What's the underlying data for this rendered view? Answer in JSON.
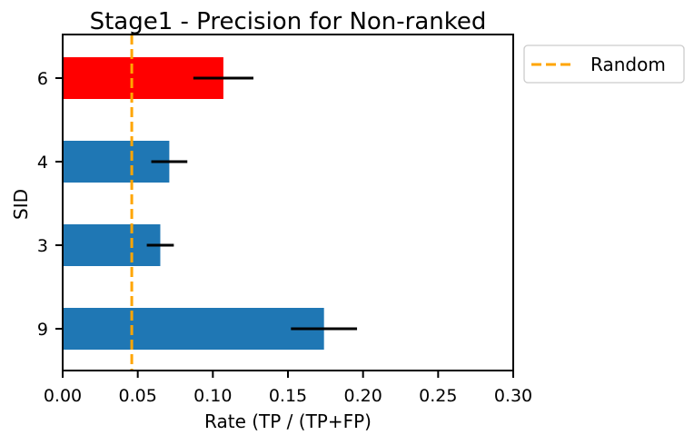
{
  "chart_data": {
    "type": "bar",
    "orientation": "horizontal",
    "title": "Stage1 - Precision for Non-ranked",
    "xlabel": "Rate (TP / (TP+FP)",
    "ylabel": "SID",
    "xlim": [
      0.0,
      0.3
    ],
    "xticks": [
      "0.00",
      "0.05",
      "0.10",
      "0.15",
      "0.20",
      "0.25",
      "0.30"
    ],
    "xtick_values": [
      0.0,
      0.05,
      0.1,
      0.15,
      0.2,
      0.25,
      0.3
    ],
    "categories": [
      "6",
      "4",
      "3",
      "9"
    ],
    "values": [
      0.107,
      0.071,
      0.065,
      0.174
    ],
    "errors": [
      0.02,
      0.012,
      0.009,
      0.022
    ],
    "bar_colors": [
      "#ff0000",
      "#1f77b4",
      "#1f77b4",
      "#1f77b4"
    ],
    "error_color": "#000000",
    "reference_line": {
      "label": "Random",
      "x": 0.046,
      "color": "#ffa500",
      "style": "dashed"
    },
    "legend": {
      "position": "outside-top-right",
      "entries": [
        "Random"
      ]
    },
    "grid": false
  }
}
